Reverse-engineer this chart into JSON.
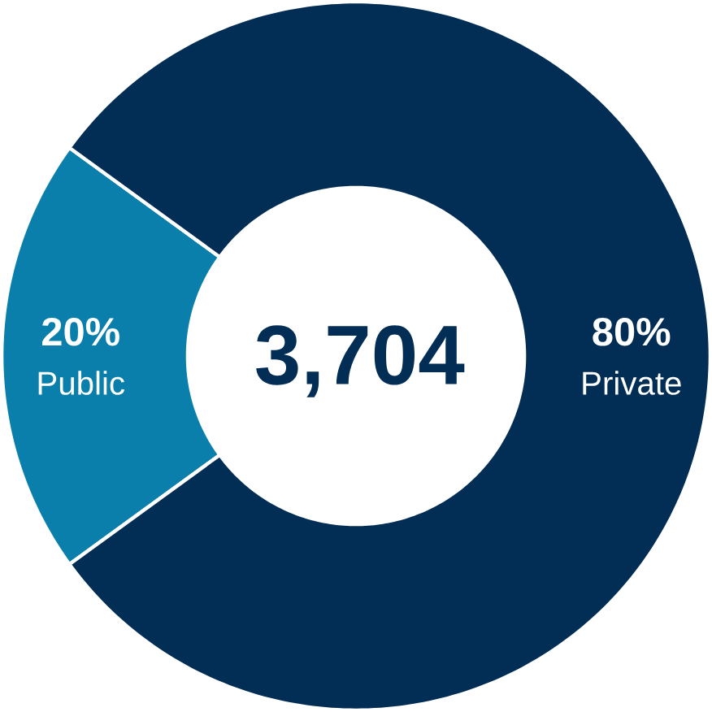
{
  "chart_data": {
    "type": "donut",
    "categories": [
      "Public",
      "Private"
    ],
    "values": [
      20,
      80
    ],
    "colors": [
      "#0a7fac",
      "#022d55"
    ],
    "value_labels": [
      "20%",
      "80%"
    ],
    "annotations": [
      "3,704"
    ]
  }
}
